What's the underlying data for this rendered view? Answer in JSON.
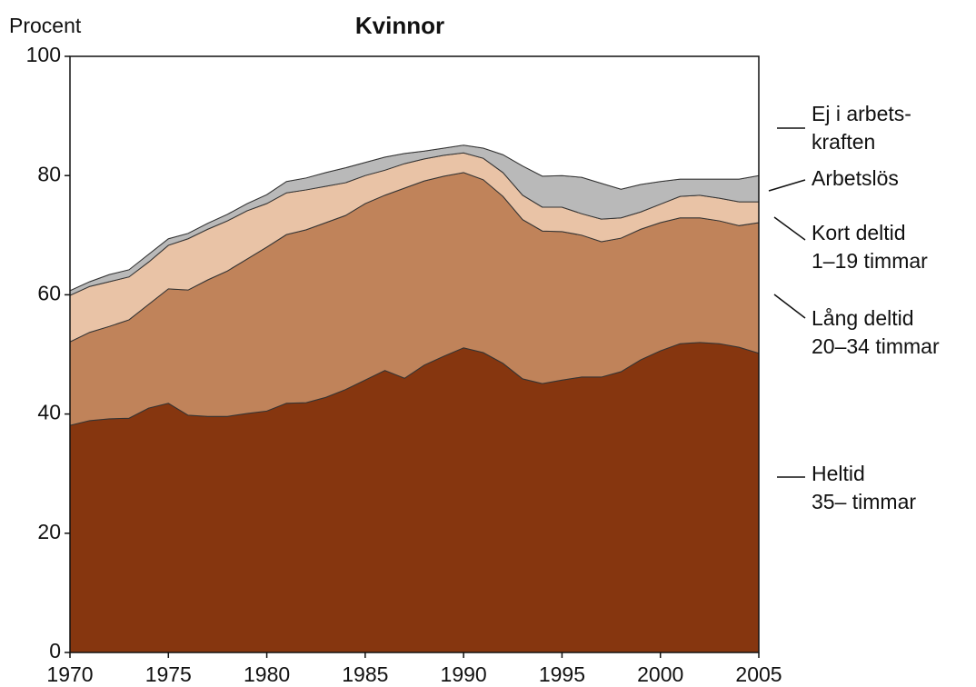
{
  "chart_data": {
    "type": "stacked_area",
    "title": "Kvinnor",
    "y_label": "Procent",
    "x": [
      1970,
      1971,
      1972,
      1973,
      1974,
      1975,
      1976,
      1977,
      1978,
      1979,
      1980,
      1981,
      1982,
      1983,
      1984,
      1985,
      1986,
      1987,
      1988,
      1989,
      1990,
      1991,
      1992,
      1993,
      1994,
      1995,
      1996,
      1997,
      1998,
      1999,
      2000,
      2001,
      2002,
      2003,
      2004,
      2005
    ],
    "xlim": [
      1970,
      2005
    ],
    "xticks": [
      1970,
      1975,
      1980,
      1985,
      1990,
      1995,
      2000,
      2005
    ],
    "ylim": [
      0,
      100
    ],
    "yticks": [
      0,
      20,
      40,
      60,
      80,
      100
    ],
    "series": [
      {
        "name": "Heltid\n35– timmar",
        "color": "#86360f",
        "values": [
          38.1,
          38.9,
          39.2,
          39.3,
          41.0,
          41.8,
          39.8,
          39.6,
          39.6,
          40.1,
          40.5,
          41.8,
          41.9,
          42.8,
          44.1,
          45.7,
          47.3,
          46.0,
          48.2,
          49.7,
          51.1,
          50.3,
          48.5,
          45.9,
          45.1,
          45.7,
          46.2,
          46.2,
          47.1,
          49.1,
          50.6,
          51.8,
          52.0,
          51.8,
          51.2,
          50.2
        ]
      },
      {
        "name": "Lång deltid\n20–34 timmar",
        "color": "#c0835a",
        "values": [
          14.0,
          14.8,
          15.5,
          16.5,
          17.4,
          19.2,
          21.0,
          22.9,
          24.4,
          25.9,
          27.5,
          28.3,
          29.0,
          29.3,
          29.2,
          29.6,
          29.4,
          31.9,
          30.9,
          30.2,
          29.4,
          29.0,
          28.0,
          26.7,
          25.6,
          24.9,
          23.8,
          22.7,
          22.4,
          21.9,
          21.5,
          21.1,
          20.9,
          20.6,
          20.4,
          21.9
        ]
      },
      {
        "name": "Kort deltid\n1–19 timmar",
        "color": "#e9c3a6",
        "values": [
          7.8,
          7.7,
          7.5,
          7.2,
          7.1,
          7.3,
          8.6,
          8.5,
          8.4,
          8.1,
          7.3,
          7.0,
          6.7,
          6.1,
          5.5,
          4.7,
          4.2,
          4.1,
          3.7,
          3.5,
          3.3,
          3.6,
          4.0,
          4.1,
          4.0,
          4.1,
          3.6,
          3.8,
          3.4,
          2.9,
          3.1,
          3.6,
          3.8,
          3.8,
          4.0,
          3.5
        ]
      },
      {
        "name": "Arbetslös",
        "color": "#b9b9b9",
        "values": [
          0.8,
          0.8,
          1.2,
          1.2,
          1.3,
          1.1,
          0.9,
          1.0,
          1.1,
          1.2,
          1.5,
          1.9,
          2.0,
          2.3,
          2.5,
          2.2,
          2.2,
          1.7,
          1.3,
          1.2,
          1.3,
          1.7,
          3.0,
          4.9,
          5.2,
          5.3,
          6.1,
          6.0,
          4.8,
          4.6,
          3.8,
          2.9,
          2.7,
          3.2,
          3.8,
          4.4
        ]
      },
      {
        "name": "Ej i arbets-\nkraften",
        "color": "#ffffff",
        "values": [
          39.3,
          37.8,
          36.6,
          35.8,
          33.2,
          30.6,
          29.7,
          28.0,
          26.5,
          24.7,
          23.2,
          21.0,
          20.4,
          19.5,
          18.7,
          17.8,
          16.9,
          16.3,
          15.9,
          15.4,
          14.9,
          15.4,
          16.5,
          18.4,
          20.1,
          20.0,
          20.3,
          21.3,
          22.3,
          21.5,
          21.0,
          20.6,
          20.6,
          20.6,
          20.6,
          20.0
        ]
      }
    ]
  }
}
